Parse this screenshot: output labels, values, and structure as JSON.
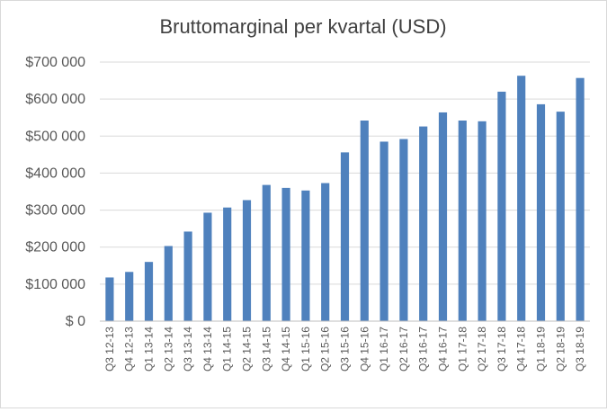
{
  "chart_data": {
    "type": "bar",
    "title": "Bruttomarginal per kvartal (USD)",
    "xlabel": "",
    "ylabel": "",
    "ylim": [
      0,
      700000
    ],
    "yticks": [
      0,
      100000,
      200000,
      300000,
      400000,
      500000,
      600000,
      700000
    ],
    "ytick_labels": [
      "$ 0",
      "$100 000",
      "$200 000",
      "$300 000",
      "$400 000",
      "$500 000",
      "$600 000",
      "$700 000"
    ],
    "grid": true,
    "legend": "none",
    "bar_color": "#4f81bd",
    "categories": [
      "Q3 12-13",
      "Q4 12-13",
      "Q1 13-14",
      "Q2 13-14",
      "Q3 13-14",
      "Q4 13-14",
      "Q1 14-15",
      "Q2 14-15",
      "Q3 14-15",
      "Q4 14-15",
      "Q1 15-16",
      "Q2 15-16",
      "Q3 15-16",
      "Q4 15-16",
      "Q1 16-17",
      "Q2 16-17",
      "Q3 16-17",
      "Q4 16-17",
      "Q1 17-18",
      "Q2 17-18",
      "Q3 17-18",
      "Q4 17-18",
      "Q1 18-19",
      "Q2 18-19",
      "Q3 18-19"
    ],
    "values": [
      118000,
      133000,
      160000,
      203000,
      242000,
      293000,
      307000,
      327000,
      368000,
      360000,
      353000,
      373000,
      456000,
      542000,
      485000,
      492000,
      526000,
      564000,
      542000,
      540000,
      620000,
      663000,
      586000,
      566000,
      657000
    ]
  }
}
